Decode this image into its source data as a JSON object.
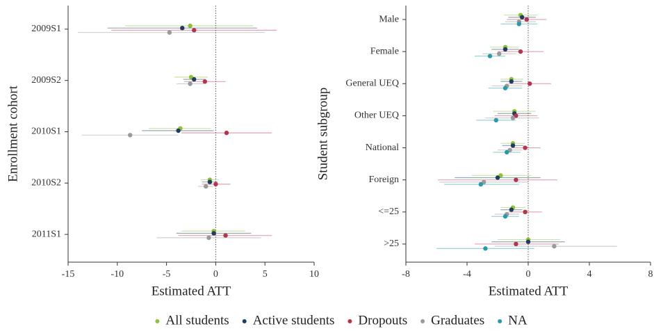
{
  "chart_data": [
    {
      "type": "dotwhisker",
      "x_label": "Estimated ATT",
      "y_label": "Enrollment cohort",
      "categories": [
        "2009S1",
        "2009S2",
        "2010S1",
        "2010S2",
        "2011S1"
      ],
      "xlim": [
        -15,
        10
      ],
      "xticks": [
        -15,
        -10,
        -5,
        0,
        5,
        10
      ],
      "series": [
        {
          "name": "All students",
          "color": "#8fbf3b",
          "values": [
            -2.6,
            -2.5,
            -3.6,
            -0.6,
            -0.2
          ],
          "lower": [
            -9.2,
            -4.2,
            -6.8,
            -1.5,
            -3.5
          ],
          "upper": [
            3.8,
            -0.8,
            -0.5,
            0.3,
            3
          ]
        },
        {
          "name": "Active students",
          "color": "#1f3d5c",
          "values": [
            -3.4,
            -2.2,
            -3.8,
            -0.6,
            -0.2
          ],
          "lower": [
            -11,
            -3.3,
            -7.5,
            -1.4,
            -4
          ],
          "upper": [
            4.2,
            -1,
            -0.2,
            0.2,
            3.6
          ]
        },
        {
          "name": "Dropouts",
          "color": "#b3344f",
          "values": [
            -2.2,
            -1.1,
            1.1,
            0,
            1
          ],
          "lower": [
            -10.6,
            -3.2,
            -3.5,
            -1.4,
            -3.8
          ],
          "upper": [
            6.2,
            1,
            5.7,
            1.5,
            5.7
          ]
        },
        {
          "name": "Graduates",
          "color": "#9a9a9a",
          "values": [
            -4.7,
            -2.6,
            -8.7,
            -1,
            -0.7
          ],
          "lower": [
            -14,
            -4,
            -13.6,
            -1.8,
            -6
          ],
          "upper": [
            5,
            -1.2,
            -3.8,
            -0.2,
            4.6
          ]
        }
      ]
    },
    {
      "type": "dotwhisker",
      "x_label": "Estimated ATT",
      "y_label": "Student subgroup",
      "categories": [
        "Male",
        "Female",
        "General UEQ",
        "Other UEQ",
        "National",
        "Foreign",
        "<=25",
        ">25"
      ],
      "xlim": [
        -8,
        8
      ],
      "xticks": [
        -8,
        -4,
        0,
        4,
        8
      ],
      "series": [
        {
          "name": "All students",
          "color": "#8fbf3b",
          "values": [
            -0.5,
            -1.5,
            -1.1,
            -0.9,
            -1,
            -1.8,
            -1,
            0
          ],
          "lower": [
            -1.6,
            -2.5,
            -1.8,
            -2.3,
            -1.8,
            -3.7,
            -1.8,
            -2
          ],
          "upper": [
            0.6,
            -0.6,
            -0.3,
            0.5,
            -0.2,
            0.2,
            -0.2,
            2.1
          ]
        },
        {
          "name": "Active students",
          "color": "#1f3d5c",
          "values": [
            -0.4,
            -1.5,
            -1.1,
            -0.9,
            -1,
            -2,
            -1.1,
            0
          ],
          "lower": [
            -1.3,
            -2.4,
            -1.8,
            -2,
            -1.7,
            -4.8,
            -1.8,
            -2.4
          ],
          "upper": [
            0.5,
            -0.6,
            -0.4,
            0.2,
            -0.3,
            0.8,
            -0.4,
            2.4
          ]
        },
        {
          "name": "Dropouts",
          "color": "#b3344f",
          "values": [
            -0.1,
            -0.5,
            0.1,
            -0.8,
            -0.2,
            -0.8,
            -0.2,
            -0.8
          ],
          "lower": [
            -1.4,
            -2,
            -1.3,
            -2.2,
            -1.1,
            -5.9,
            -1.3,
            -3.5
          ],
          "upper": [
            1.2,
            1,
            1.5,
            0.6,
            0.8,
            1.9,
            0.9,
            2
          ]
        },
        {
          "name": "Graduates",
          "color": "#9a9a9a",
          "values": [
            -0.6,
            -1.9,
            -1.4,
            -1,
            -1.2,
            -2.9,
            -1.4,
            1.7
          ],
          "lower": [
            -1.5,
            -3,
            -2.4,
            -2.8,
            -2,
            -5.8,
            -2.2,
            -2.2
          ],
          "upper": [
            0.5,
            -0.8,
            -0.4,
            0.7,
            -0.4,
            0,
            -0.6,
            5.8
          ]
        },
        {
          "name": "NA",
          "color": "#2a9aa8",
          "values": [
            -0.6,
            -2.5,
            -1.5,
            -2.1,
            -1.4,
            -3.1,
            -1.5,
            -2.8
          ],
          "lower": [
            -1.8,
            -3.5,
            -2.6,
            -3.4,
            -2.3,
            -5.5,
            -2.4,
            -6
          ],
          "upper": [
            0.6,
            -1.5,
            -0.4,
            -0.8,
            -0.5,
            -0.6,
            -0.6,
            0.4
          ]
        }
      ]
    }
  ]
}
